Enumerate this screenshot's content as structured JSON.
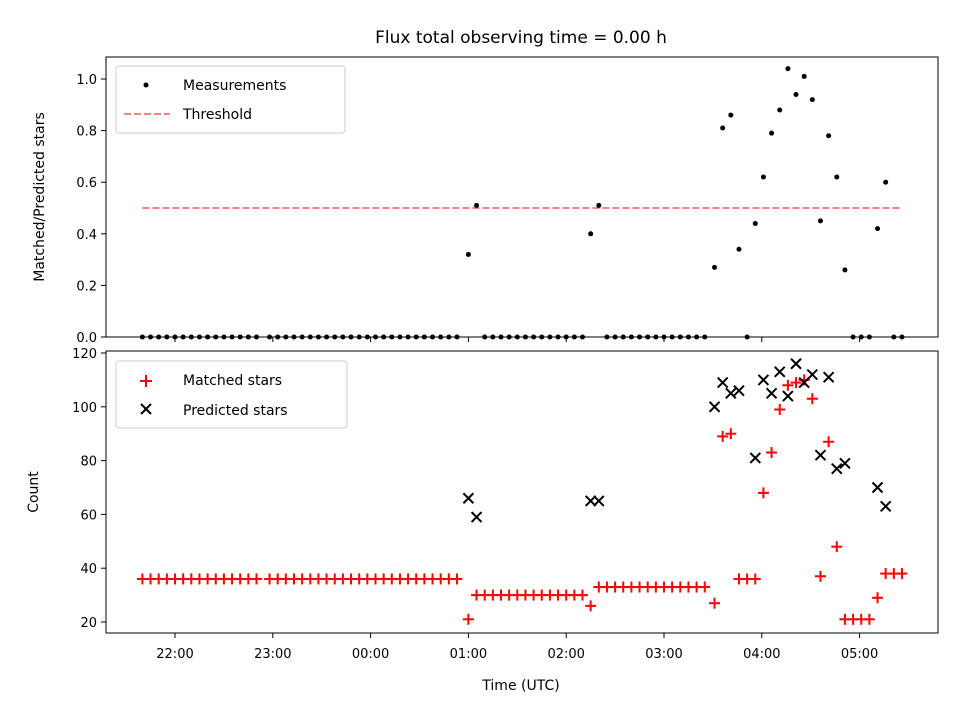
{
  "chart_data": [
    {
      "type": "scatter",
      "title": "Flux total observing time = 0.00 h",
      "ylabel": "Matched/Predicted stars",
      "xlabel": "",
      "ylim": [
        0,
        1.08
      ],
      "yticks": [
        "0.0",
        "0.2",
        "0.4",
        "0.6",
        "0.8",
        "1.0"
      ],
      "legend": {
        "placement": "top-left",
        "entries": [
          "Measurements",
          "Threshold"
        ]
      },
      "threshold": {
        "name": "Threshold",
        "value": 0.5,
        "x_start": "21:40",
        "x_end": "05:25",
        "color": "#ff8080"
      },
      "series": [
        {
          "name": "Measurements",
          "marker": "dot",
          "color": "#000000",
          "points": [
            [
              "21:40",
              0
            ],
            [
              "21:45",
              0
            ],
            [
              "21:50",
              0
            ],
            [
              "21:55",
              0
            ],
            [
              "22:00",
              0
            ],
            [
              "22:05",
              0
            ],
            [
              "22:10",
              0
            ],
            [
              "22:15",
              0
            ],
            [
              "22:20",
              0
            ],
            [
              "22:25",
              0
            ],
            [
              "22:30",
              0
            ],
            [
              "22:35",
              0
            ],
            [
              "22:40",
              0
            ],
            [
              "22:45",
              0
            ],
            [
              "22:50",
              0
            ],
            [
              "22:58",
              0
            ],
            [
              "23:03",
              0
            ],
            [
              "23:08",
              0
            ],
            [
              "23:13",
              0
            ],
            [
              "23:18",
              0
            ],
            [
              "23:23",
              0
            ],
            [
              "23:28",
              0
            ],
            [
              "23:33",
              0
            ],
            [
              "23:38",
              0
            ],
            [
              "23:43",
              0
            ],
            [
              "23:48",
              0
            ],
            [
              "23:53",
              0
            ],
            [
              "23:58",
              0
            ],
            [
              "00:03",
              0
            ],
            [
              "00:08",
              0
            ],
            [
              "00:13",
              0
            ],
            [
              "00:18",
              0
            ],
            [
              "00:23",
              0
            ],
            [
              "00:28",
              0
            ],
            [
              "00:33",
              0
            ],
            [
              "00:38",
              0
            ],
            [
              "00:43",
              0
            ],
            [
              "00:48",
              0
            ],
            [
              "00:53",
              0
            ],
            [
              "01:00",
              0.32
            ],
            [
              "01:05",
              0.51
            ],
            [
              "01:10",
              0
            ],
            [
              "01:15",
              0
            ],
            [
              "01:20",
              0
            ],
            [
              "01:25",
              0
            ],
            [
              "01:30",
              0
            ],
            [
              "01:35",
              0
            ],
            [
              "01:40",
              0
            ],
            [
              "01:45",
              0
            ],
            [
              "01:50",
              0
            ],
            [
              "01:55",
              0
            ],
            [
              "02:00",
              0
            ],
            [
              "02:05",
              0
            ],
            [
              "02:10",
              0
            ],
            [
              "02:15",
              0.4
            ],
            [
              "02:20",
              0.51
            ],
            [
              "02:25",
              0
            ],
            [
              "02:30",
              0
            ],
            [
              "02:35",
              0
            ],
            [
              "02:40",
              0
            ],
            [
              "02:45",
              0
            ],
            [
              "02:50",
              0
            ],
            [
              "02:55",
              0
            ],
            [
              "03:00",
              0
            ],
            [
              "03:05",
              0
            ],
            [
              "03:10",
              0
            ],
            [
              "03:15",
              0
            ],
            [
              "03:20",
              0
            ],
            [
              "03:25",
              0
            ],
            [
              "03:31",
              0.27
            ],
            [
              "03:36",
              0.81
            ],
            [
              "03:41",
              0.86
            ],
            [
              "03:46",
              0.34
            ],
            [
              "03:51",
              0
            ],
            [
              "03:56",
              0.44
            ],
            [
              "04:01",
              0.62
            ],
            [
              "04:06",
              0.79
            ],
            [
              "04:11",
              0.88
            ],
            [
              "04:16",
              1.04
            ],
            [
              "04:21",
              0.94
            ],
            [
              "04:26",
              1.01
            ],
            [
              "04:31",
              0.92
            ],
            [
              "04:36",
              0.45
            ],
            [
              "04:41",
              0.78
            ],
            [
              "04:46",
              0.62
            ],
            [
              "04:51",
              0.26
            ],
            [
              "04:56",
              0
            ],
            [
              "05:01",
              0
            ],
            [
              "05:06",
              0
            ],
            [
              "05:11",
              0.42
            ],
            [
              "05:16",
              0.6
            ],
            [
              "05:21",
              0
            ],
            [
              "05:26",
              0
            ]
          ]
        }
      ]
    },
    {
      "type": "scatter",
      "title": "",
      "ylabel": "Count",
      "xlabel": "Time (UTC)",
      "ylim": [
        16,
        121
      ],
      "yticks": [
        "20",
        "40",
        "60",
        "80",
        "100",
        "120"
      ],
      "xticks": [
        "22:00",
        "23:00",
        "00:00",
        "01:00",
        "02:00",
        "03:00",
        "04:00",
        "05:00"
      ],
      "legend": {
        "placement": "top-left",
        "entries": [
          "Matched stars",
          "Predicted stars"
        ]
      },
      "series": [
        {
          "name": "Matched stars",
          "marker": "plus",
          "color": "#ff0000",
          "points": [
            [
              "21:40",
              36
            ],
            [
              "21:45",
              36
            ],
            [
              "21:50",
              36
            ],
            [
              "21:55",
              36
            ],
            [
              "22:00",
              36
            ],
            [
              "22:05",
              36
            ],
            [
              "22:10",
              36
            ],
            [
              "22:15",
              36
            ],
            [
              "22:20",
              36
            ],
            [
              "22:25",
              36
            ],
            [
              "22:30",
              36
            ],
            [
              "22:35",
              36
            ],
            [
              "22:40",
              36
            ],
            [
              "22:45",
              36
            ],
            [
              "22:50",
              36
            ],
            [
              "22:58",
              36
            ],
            [
              "23:03",
              36
            ],
            [
              "23:08",
              36
            ],
            [
              "23:13",
              36
            ],
            [
              "23:18",
              36
            ],
            [
              "23:23",
              36
            ],
            [
              "23:28",
              36
            ],
            [
              "23:33",
              36
            ],
            [
              "23:38",
              36
            ],
            [
              "23:43",
              36
            ],
            [
              "23:48",
              36
            ],
            [
              "23:53",
              36
            ],
            [
              "23:58",
              36
            ],
            [
              "00:03",
              36
            ],
            [
              "00:08",
              36
            ],
            [
              "00:13",
              36
            ],
            [
              "00:18",
              36
            ],
            [
              "00:23",
              36
            ],
            [
              "00:28",
              36
            ],
            [
              "00:33",
              36
            ],
            [
              "00:38",
              36
            ],
            [
              "00:43",
              36
            ],
            [
              "00:48",
              36
            ],
            [
              "00:53",
              36
            ],
            [
              "01:00",
              21
            ],
            [
              "01:05",
              30
            ],
            [
              "01:10",
              30
            ],
            [
              "01:15",
              30
            ],
            [
              "01:20",
              30
            ],
            [
              "01:25",
              30
            ],
            [
              "01:30",
              30
            ],
            [
              "01:35",
              30
            ],
            [
              "01:40",
              30
            ],
            [
              "01:45",
              30
            ],
            [
              "01:50",
              30
            ],
            [
              "01:55",
              30
            ],
            [
              "02:00",
              30
            ],
            [
              "02:05",
              30
            ],
            [
              "02:10",
              30
            ],
            [
              "02:15",
              26
            ],
            [
              "02:20",
              33
            ],
            [
              "02:25",
              33
            ],
            [
              "02:30",
              33
            ],
            [
              "02:35",
              33
            ],
            [
              "02:40",
              33
            ],
            [
              "02:45",
              33
            ],
            [
              "02:50",
              33
            ],
            [
              "02:55",
              33
            ],
            [
              "03:00",
              33
            ],
            [
              "03:05",
              33
            ],
            [
              "03:10",
              33
            ],
            [
              "03:15",
              33
            ],
            [
              "03:20",
              33
            ],
            [
              "03:25",
              33
            ],
            [
              "03:31",
              27
            ],
            [
              "03:36",
              89
            ],
            [
              "03:41",
              90
            ],
            [
              "03:46",
              36
            ],
            [
              "03:51",
              36
            ],
            [
              "03:56",
              36
            ],
            [
              "04:01",
              68
            ],
            [
              "04:06",
              83
            ],
            [
              "04:11",
              99
            ],
            [
              "04:16",
              108
            ],
            [
              "04:21",
              109
            ],
            [
              "04:26",
              110
            ],
            [
              "04:31",
              103
            ],
            [
              "04:36",
              37
            ],
            [
              "04:41",
              87
            ],
            [
              "04:46",
              48
            ],
            [
              "04:51",
              21
            ],
            [
              "04:56",
              21
            ],
            [
              "05:01",
              21
            ],
            [
              "05:06",
              21
            ],
            [
              "05:11",
              29
            ],
            [
              "05:16",
              38
            ],
            [
              "05:21",
              38
            ],
            [
              "05:26",
              38
            ]
          ]
        },
        {
          "name": "Predicted stars",
          "marker": "cross",
          "color": "#000000",
          "points": [
            [
              "01:00",
              66
            ],
            [
              "01:05",
              59
            ],
            [
              "02:15",
              65
            ],
            [
              "02:20",
              65
            ],
            [
              "03:31",
              100
            ],
            [
              "03:36",
              109
            ],
            [
              "03:41",
              105
            ],
            [
              "03:46",
              106
            ],
            [
              "03:56",
              81
            ],
            [
              "04:01",
              110
            ],
            [
              "04:06",
              105
            ],
            [
              "04:11",
              113
            ],
            [
              "04:16",
              104
            ],
            [
              "04:21",
              116
            ],
            [
              "04:26",
              109
            ],
            [
              "04:31",
              112
            ],
            [
              "04:36",
              82
            ],
            [
              "04:41",
              111
            ],
            [
              "04:46",
              77
            ],
            [
              "04:51",
              79
            ],
            [
              "05:11",
              70
            ],
            [
              "05:16",
              63
            ]
          ]
        }
      ]
    }
  ]
}
